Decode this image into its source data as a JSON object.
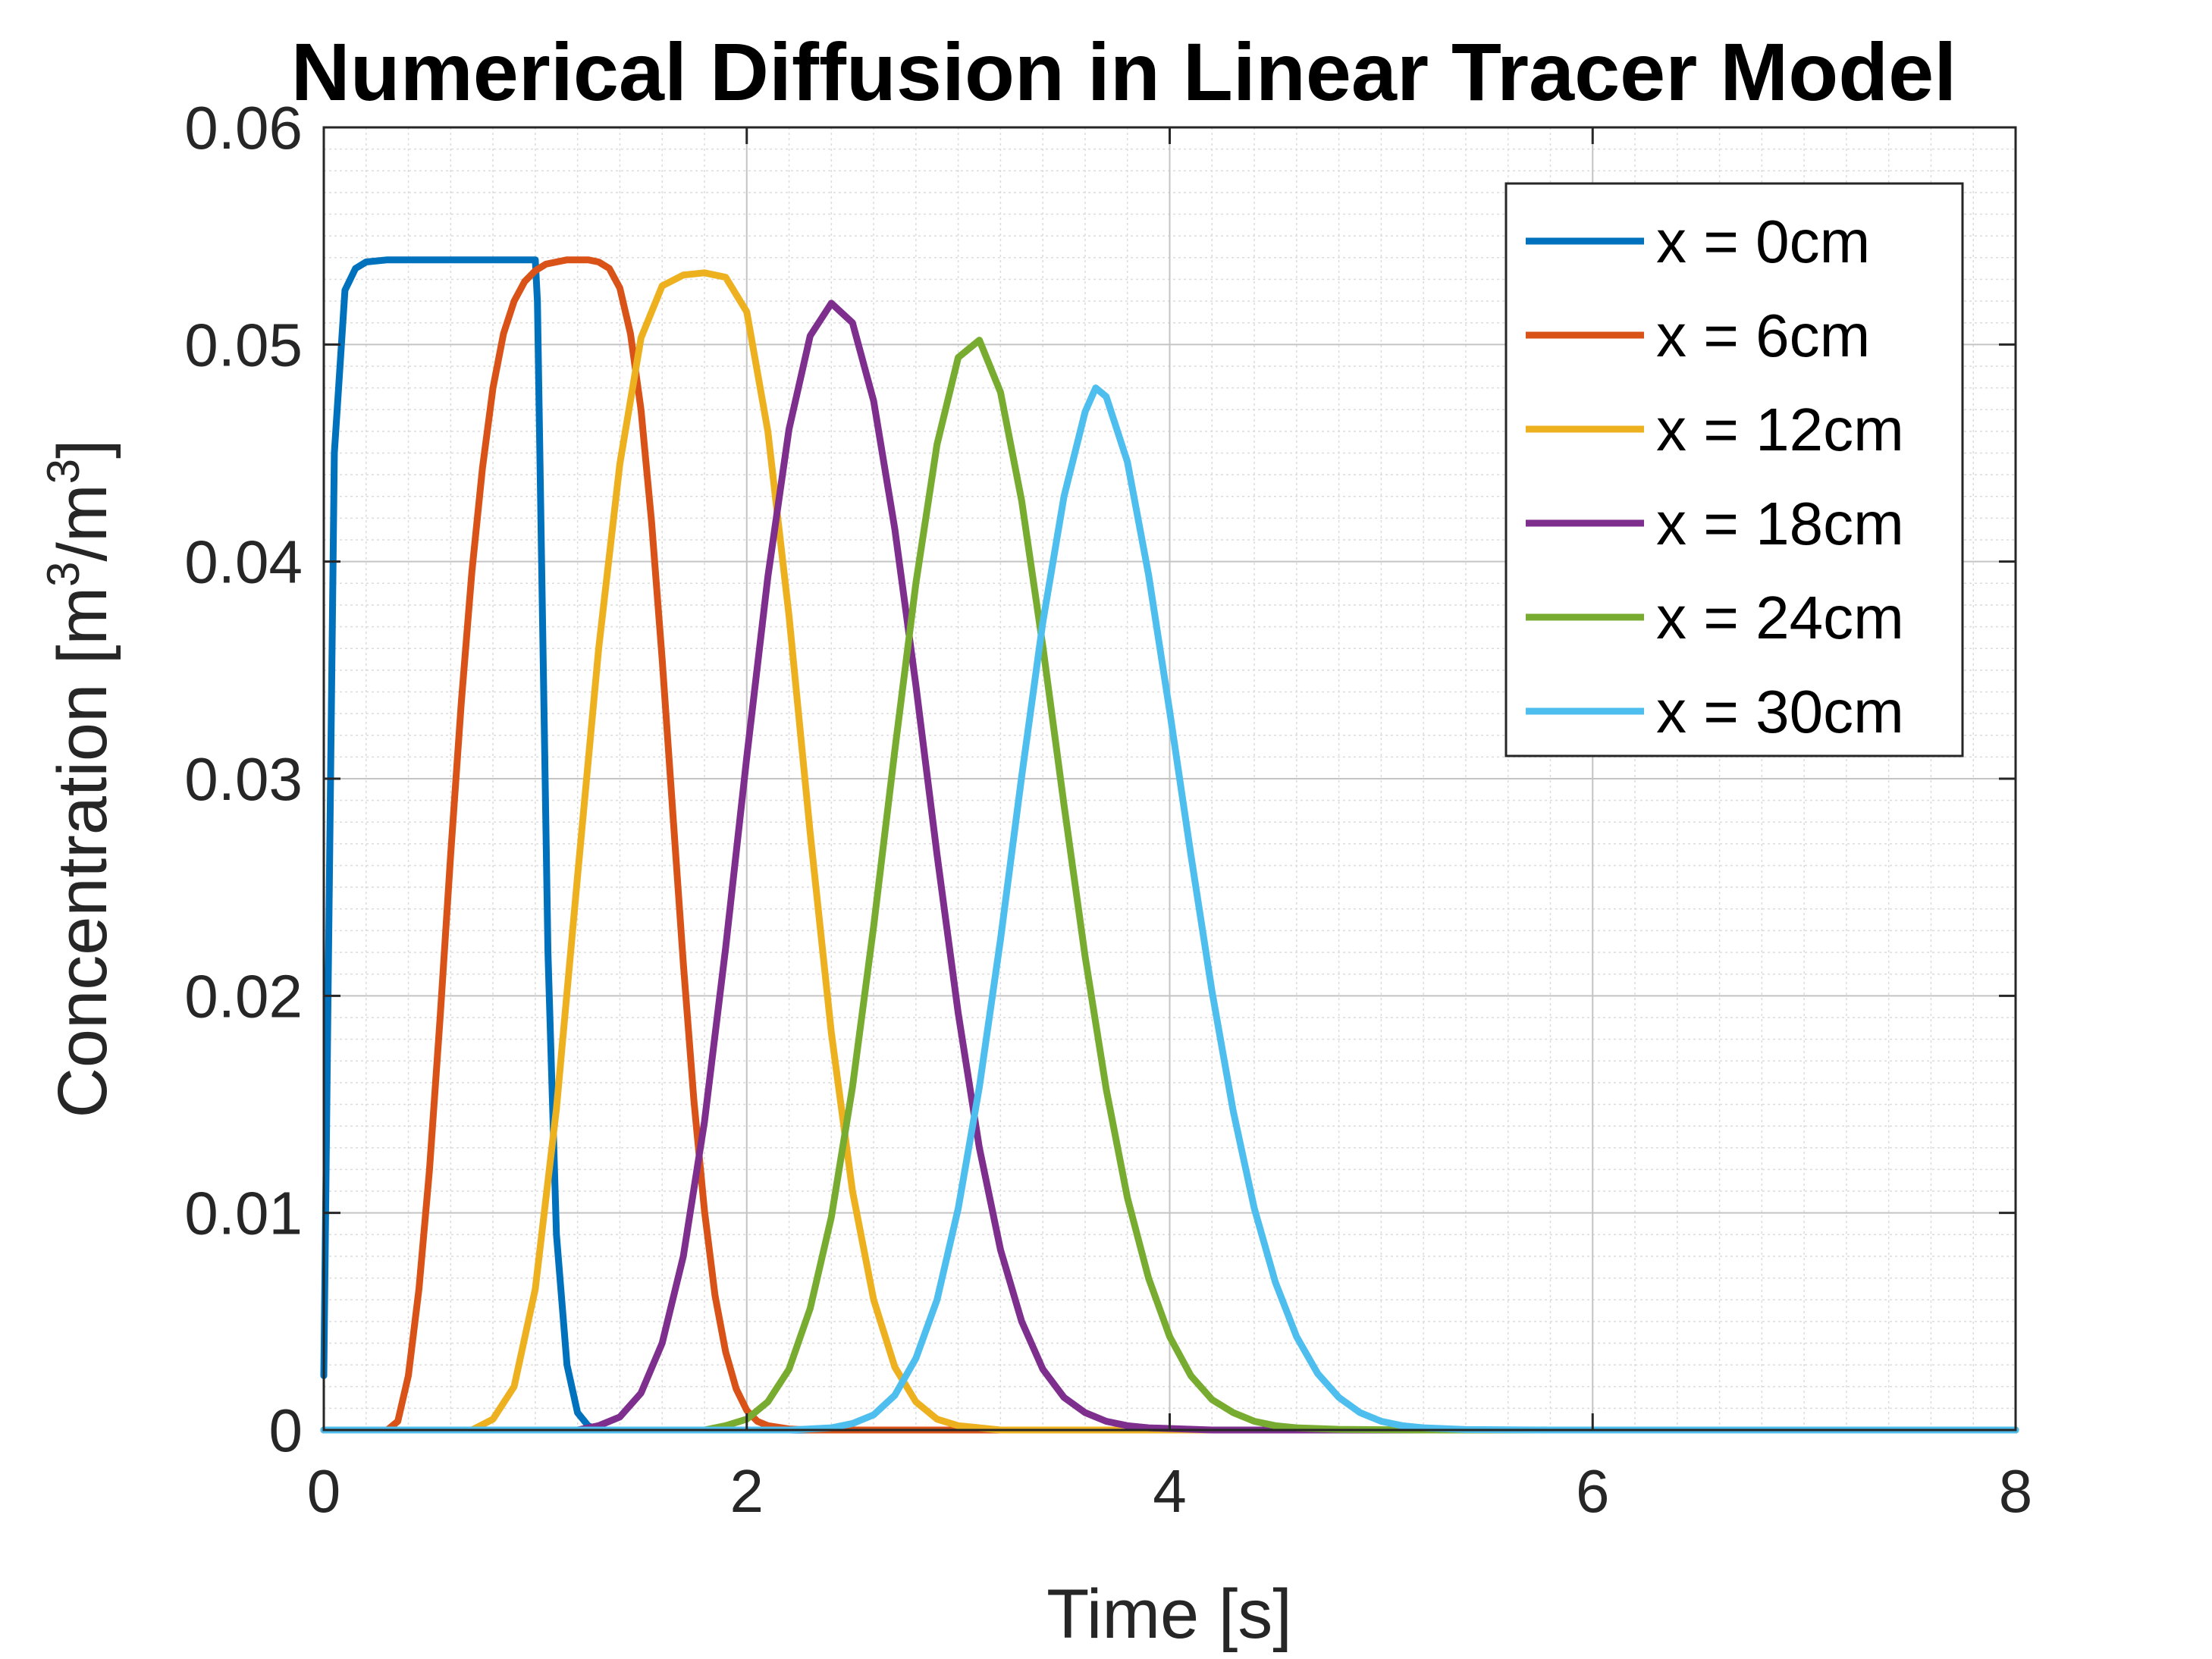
{
  "chart_data": {
    "type": "line",
    "title": "Numerical Diffusion in Linear Tracer Model",
    "xlabel": "Time [s]",
    "ylabel": {
      "text": "Concentration [m",
      "sup1": "3",
      "mid": "/m",
      "sup2": "3",
      "end": "]"
    },
    "xlim": [
      0,
      8
    ],
    "ylim": [
      0,
      0.06
    ],
    "xticks": [
      "0",
      "2",
      "4",
      "6",
      "8"
    ],
    "xtick_values": [
      0,
      2,
      4,
      6,
      8
    ],
    "yticks": [
      "0",
      "0.01",
      "0.02",
      "0.03",
      "0.04",
      "0.05",
      "0.06"
    ],
    "ytick_values": [
      0,
      0.01,
      0.02,
      0.03,
      0.04,
      0.05,
      0.06
    ],
    "grid": "major and minor",
    "legend_position": "top-right",
    "series": [
      {
        "name": "x = 0cm",
        "color": "#0072BD",
        "x": [
          0,
          0.02,
          0.05,
          0.1,
          0.15,
          0.2,
          0.3,
          0.5,
          0.8,
          1.0,
          1.01,
          1.03,
          1.06,
          1.1,
          1.15,
          1.2,
          1.25,
          1.3,
          1.4,
          1.6,
          2.0,
          8.0
        ],
        "y": [
          0.0025,
          0.02,
          0.045,
          0.0525,
          0.0535,
          0.0538,
          0.0539,
          0.0539,
          0.0539,
          0.0539,
          0.052,
          0.04,
          0.022,
          0.009,
          0.003,
          0.0008,
          0.0002,
          0,
          0,
          0,
          0,
          0
        ]
      },
      {
        "name": "x = 6cm",
        "color": "#D95319",
        "x": [
          0,
          0.3,
          0.35,
          0.4,
          0.45,
          0.5,
          0.55,
          0.6,
          0.65,
          0.7,
          0.75,
          0.8,
          0.85,
          0.9,
          0.95,
          1.0,
          1.05,
          1.1,
          1.15,
          1.2,
          1.25,
          1.3,
          1.35,
          1.4,
          1.45,
          1.5,
          1.55,
          1.6,
          1.65,
          1.7,
          1.75,
          1.8,
          1.85,
          1.9,
          1.95,
          2.0,
          2.05,
          2.1,
          2.2,
          2.3,
          2.5,
          8.0
        ],
        "y": [
          0,
          0,
          0.0004,
          0.0025,
          0.0065,
          0.012,
          0.019,
          0.0265,
          0.0335,
          0.0395,
          0.0443,
          0.048,
          0.0505,
          0.052,
          0.0529,
          0.0534,
          0.0537,
          0.0538,
          0.0539,
          0.0539,
          0.0539,
          0.0538,
          0.0535,
          0.0526,
          0.0505,
          0.047,
          0.0418,
          0.0355,
          0.0285,
          0.0215,
          0.0152,
          0.0101,
          0.0062,
          0.0036,
          0.0019,
          0.0009,
          0.0004,
          0.0002,
          5e-05,
          0,
          0,
          0
        ]
      },
      {
        "name": "x = 12cm",
        "color": "#EDB120",
        "x": [
          0,
          0.7,
          0.8,
          0.9,
          1.0,
          1.1,
          1.2,
          1.3,
          1.4,
          1.5,
          1.6,
          1.7,
          1.8,
          1.9,
          2.0,
          2.1,
          2.2,
          2.3,
          2.4,
          2.5,
          2.6,
          2.7,
          2.8,
          2.9,
          3.0,
          3.2,
          8.0
        ],
        "y": [
          0,
          0,
          0.0005,
          0.002,
          0.0065,
          0.0148,
          0.0255,
          0.036,
          0.0445,
          0.0503,
          0.0527,
          0.0532,
          0.0533,
          0.0531,
          0.0515,
          0.046,
          0.0375,
          0.0275,
          0.0183,
          0.011,
          0.006,
          0.0029,
          0.0013,
          0.0005,
          0.0002,
          0,
          0
        ]
      },
      {
        "name": "x = 18cm",
        "color": "#7E2F8E",
        "x": [
          0,
          1.2,
          1.3,
          1.4,
          1.5,
          1.6,
          1.7,
          1.8,
          1.9,
          2.0,
          2.1,
          2.2,
          2.3,
          2.4,
          2.5,
          2.6,
          2.7,
          2.8,
          2.9,
          3.0,
          3.1,
          3.2,
          3.3,
          3.4,
          3.5,
          3.6,
          3.7,
          3.8,
          3.9,
          4.2,
          8.0
        ],
        "y": [
          0,
          0,
          0.0002,
          0.0006,
          0.0017,
          0.004,
          0.008,
          0.0142,
          0.0222,
          0.031,
          0.0393,
          0.0461,
          0.0504,
          0.0519,
          0.051,
          0.0474,
          0.0415,
          0.0343,
          0.0265,
          0.0192,
          0.013,
          0.0083,
          0.005,
          0.0028,
          0.0015,
          0.0008,
          0.0004,
          0.0002,
          0.0001,
          0,
          0
        ]
      },
      {
        "name": "x = 24cm",
        "color": "#77AC30",
        "x": [
          0,
          1.8,
          1.9,
          2.0,
          2.1,
          2.2,
          2.3,
          2.4,
          2.5,
          2.6,
          2.7,
          2.8,
          2.9,
          3.0,
          3.1,
          3.2,
          3.3,
          3.4,
          3.5,
          3.6,
          3.7,
          3.8,
          3.9,
          4.0,
          4.1,
          4.2,
          4.3,
          4.4,
          4.5,
          4.6,
          4.8,
          5.2,
          8.0
        ],
        "y": [
          0,
          0,
          0.0002,
          0.0005,
          0.0013,
          0.0028,
          0.0056,
          0.0098,
          0.0158,
          0.0232,
          0.0313,
          0.039,
          0.0454,
          0.0494,
          0.0502,
          0.0478,
          0.0428,
          0.0361,
          0.0288,
          0.0218,
          0.0157,
          0.0107,
          0.007,
          0.0043,
          0.0025,
          0.0014,
          0.0008,
          0.0004,
          0.0002,
          0.0001,
          3e-05,
          0,
          0
        ]
      },
      {
        "name": "x = 30cm",
        "color": "#4DBEEE",
        "x": [
          0,
          2.2,
          2.4,
          2.5,
          2.6,
          2.7,
          2.8,
          2.9,
          3.0,
          3.1,
          3.2,
          3.3,
          3.4,
          3.5,
          3.6,
          3.65,
          3.7,
          3.8,
          3.9,
          4.0,
          4.1,
          4.2,
          4.3,
          4.4,
          4.5,
          4.6,
          4.7,
          4.8,
          4.9,
          5.0,
          5.1,
          5.2,
          5.4,
          5.8,
          8.0
        ],
        "y": [
          0,
          0,
          0.0001,
          0.0003,
          0.0007,
          0.0016,
          0.0033,
          0.006,
          0.0102,
          0.0158,
          0.0226,
          0.0301,
          0.0372,
          0.043,
          0.0469,
          0.048,
          0.0476,
          0.0446,
          0.0394,
          0.0331,
          0.0265,
          0.0202,
          0.0147,
          0.0102,
          0.0068,
          0.0043,
          0.0026,
          0.0015,
          0.0008,
          0.0004,
          0.0002,
          0.0001,
          2e-05,
          0,
          0
        ]
      }
    ]
  }
}
